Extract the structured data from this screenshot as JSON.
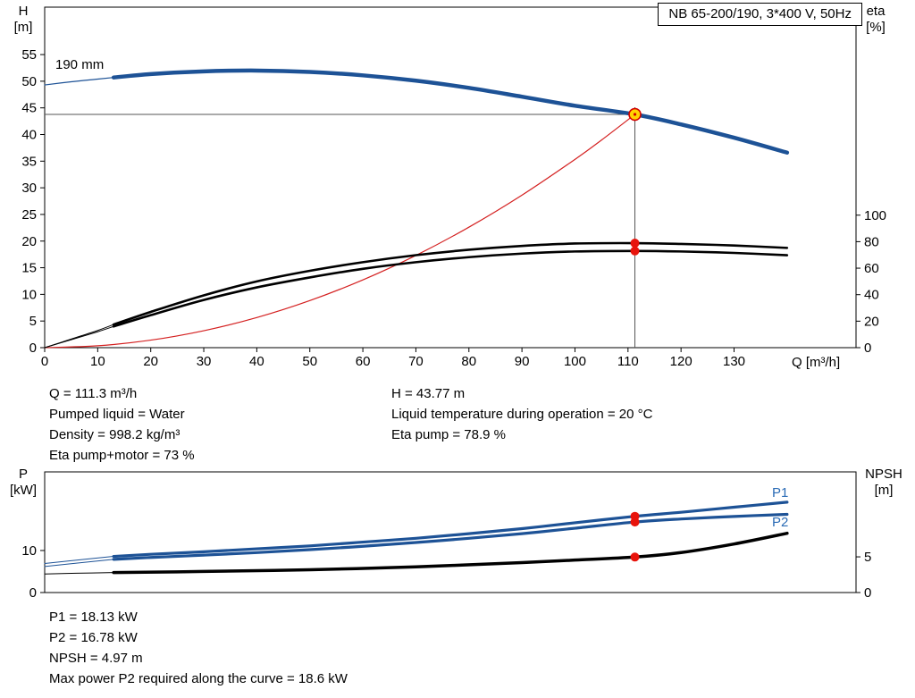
{
  "title_box": "NB 65-200/190, 3*400 V, 50Hz",
  "colors": {
    "curve_blue": "#1d5296",
    "label_blue": "#2a6bb5",
    "black": "#000000",
    "red": "#d42020",
    "dot_red": "#e8140c",
    "duty_fill": "#ffd400",
    "duty_ring": "#d40000",
    "crosshair": "#555555",
    "frame": "#000000"
  },
  "chart_data": [
    {
      "id": "head-chart",
      "type": "line",
      "x": {
        "label": "Q [m³/h]",
        "min": 0,
        "max": 153,
        "ticks": [
          0,
          10,
          20,
          30,
          40,
          50,
          60,
          70,
          80,
          90,
          100,
          110,
          120,
          130
        ]
      },
      "y_left": {
        "label": [
          "H",
          "[m]"
        ],
        "min": 0,
        "max": 63.9,
        "ticks": [
          0,
          5,
          10,
          15,
          20,
          25,
          30,
          35,
          40,
          45,
          50,
          55
        ]
      },
      "y_right": {
        "label": [
          "eta",
          "[%]"
        ],
        "min": 0,
        "max": 257,
        "ticks": [
          0,
          20,
          40,
          60,
          80,
          100
        ]
      },
      "curve_label": {
        "text": "190 mm"
      },
      "duty_point": {
        "q": 111.3,
        "h": 43.77
      },
      "dots": [
        {
          "axis": "right",
          "q": 111.3,
          "v": 78.9
        },
        {
          "axis": "right",
          "q": 111.3,
          "v": 73.0
        }
      ],
      "series": [
        {
          "name": "system-curve",
          "axis": "left",
          "color": "red",
          "width": 1.2,
          "points": [
            [
              0,
              0
            ],
            [
              10,
              0.35
            ],
            [
              20,
              1.41
            ],
            [
              30,
              3.18
            ],
            [
              40,
              5.65
            ],
            [
              50,
              8.83
            ],
            [
              60,
              12.72
            ],
            [
              70,
              17.31
            ],
            [
              80,
              22.61
            ],
            [
              90,
              28.62
            ],
            [
              100,
              35.33
            ],
            [
              105,
              38.95
            ],
            [
              111.3,
              43.77
            ]
          ]
        },
        {
          "name": "eta-pump-lead",
          "axis": "right",
          "color": "black",
          "width": 1,
          "points": [
            [
              0,
              0
            ],
            [
              5,
              6.5
            ],
            [
              10,
              13
            ],
            [
              13,
              17.5
            ]
          ]
        },
        {
          "name": "eta-pump",
          "axis": "right",
          "color": "black",
          "width": 2.6,
          "points": [
            [
              13,
              17.5
            ],
            [
              20,
              27
            ],
            [
              30,
              39.5
            ],
            [
              40,
              50
            ],
            [
              50,
              58
            ],
            [
              60,
              64.5
            ],
            [
              70,
              69.8
            ],
            [
              80,
              73.9
            ],
            [
              90,
              76.8
            ],
            [
              100,
              78.6
            ],
            [
              111.3,
              78.9
            ],
            [
              120,
              78.3
            ],
            [
              130,
              77.1
            ],
            [
              140,
              75.3
            ]
          ]
        },
        {
          "name": "eta-pump-motor-lead",
          "axis": "right",
          "color": "black",
          "width": 1,
          "points": [
            [
              0,
              0
            ],
            [
              5,
              6
            ],
            [
              10,
              12
            ],
            [
              13,
              16
            ]
          ]
        },
        {
          "name": "eta-pump-motor",
          "axis": "right",
          "color": "black",
          "width": 2.6,
          "points": [
            [
              13,
              16
            ],
            [
              20,
              24.5
            ],
            [
              30,
              36
            ],
            [
              40,
              45.5
            ],
            [
              50,
              53
            ],
            [
              60,
              59.5
            ],
            [
              70,
              64.5
            ],
            [
              80,
              68.3
            ],
            [
              90,
              71
            ],
            [
              100,
              72.6
            ],
            [
              111.3,
              73
            ],
            [
              120,
              72.6
            ],
            [
              130,
              71.5
            ],
            [
              140,
              69.8
            ]
          ]
        },
        {
          "name": "pump-curve-lead",
          "axis": "left",
          "color": "curve_blue",
          "width": 1.2,
          "points": [
            [
              0,
              49.3
            ],
            [
              5,
              49.9
            ],
            [
              10,
              50.4
            ],
            [
              13,
              50.7
            ]
          ]
        },
        {
          "name": "pump-curve-190mm",
          "axis": "left",
          "color": "curve_blue",
          "width": 4.5,
          "points": [
            [
              13,
              50.7
            ],
            [
              20,
              51.35
            ],
            [
              30,
              51.85
            ],
            [
              40,
              52
            ],
            [
              50,
              51.75
            ],
            [
              60,
              51.1
            ],
            [
              70,
              50.1
            ],
            [
              80,
              48.75
            ],
            [
              90,
              47.1
            ],
            [
              100,
              45.4
            ],
            [
              111.3,
              43.77
            ],
            [
              120,
              41.9
            ],
            [
              130,
              39.4
            ],
            [
              140,
              36.6
            ]
          ]
        }
      ]
    },
    {
      "id": "power-chart",
      "type": "line",
      "x": {
        "label": "",
        "min": 0,
        "max": 153,
        "ticks": []
      },
      "y_left": {
        "label": [
          "P",
          "[kW]"
        ],
        "min": 0,
        "max": 28.7,
        "ticks": [
          0,
          10
        ]
      },
      "y_right": {
        "label": [
          "NPSH",
          "[m]"
        ],
        "min": 0,
        "max": 16.9,
        "ticks": [
          0,
          5
        ]
      },
      "series_labels": [
        "P1",
        "P2"
      ],
      "dots": [
        {
          "axis": "left",
          "q": 111.3,
          "v": 18.13
        },
        {
          "axis": "left",
          "q": 111.3,
          "v": 16.78
        },
        {
          "axis": "right",
          "q": 111.3,
          "v": 4.97
        }
      ],
      "series": [
        {
          "name": "npsh-lead",
          "axis": "right",
          "color": "black",
          "width": 1,
          "points": [
            [
              0,
              2.6
            ],
            [
              6,
              2.7
            ],
            [
              13,
              2.8
            ]
          ]
        },
        {
          "name": "npsh",
          "axis": "right",
          "color": "black",
          "width": 3.5,
          "points": [
            [
              13,
              2.8
            ],
            [
              30,
              2.95
            ],
            [
              50,
              3.2
            ],
            [
              70,
              3.6
            ],
            [
              90,
              4.2
            ],
            [
              100,
              4.55
            ],
            [
              111.3,
              4.97
            ],
            [
              120,
              5.6
            ],
            [
              130,
              6.8
            ],
            [
              140,
              8.3
            ]
          ]
        },
        {
          "name": "p2-lead",
          "axis": "left",
          "color": "curve_blue",
          "width": 1,
          "points": [
            [
              0,
              6.2
            ],
            [
              6,
              7
            ],
            [
              13,
              7.9
            ]
          ]
        },
        {
          "name": "p2",
          "axis": "left",
          "color": "curve_blue",
          "width": 3.2,
          "points": [
            [
              13,
              7.9
            ],
            [
              20,
              8.35
            ],
            [
              30,
              8.9
            ],
            [
              40,
              9.5
            ],
            [
              50,
              10.2
            ],
            [
              60,
              11
            ],
            [
              70,
              11.9
            ],
            [
              80,
              12.9
            ],
            [
              90,
              14
            ],
            [
              100,
              15.3
            ],
            [
              111.3,
              16.78
            ],
            [
              120,
              17.5
            ],
            [
              130,
              18.1
            ],
            [
              140,
              18.6
            ]
          ]
        },
        {
          "name": "p1-lead",
          "axis": "left",
          "color": "curve_blue",
          "width": 1,
          "points": [
            [
              0,
              6.9
            ],
            [
              6,
              7.7
            ],
            [
              13,
              8.6
            ]
          ]
        },
        {
          "name": "p1",
          "axis": "left",
          "color": "curve_blue",
          "width": 3.2,
          "points": [
            [
              13,
              8.6
            ],
            [
              20,
              9.1
            ],
            [
              30,
              9.7
            ],
            [
              40,
              10.4
            ],
            [
              50,
              11.1
            ],
            [
              60,
              12
            ],
            [
              70,
              12.9
            ],
            [
              80,
              14
            ],
            [
              90,
              15.2
            ],
            [
              100,
              16.6
            ],
            [
              111.3,
              18.13
            ],
            [
              120,
              19.1
            ],
            [
              130,
              20.3
            ],
            [
              140,
              21.5
            ]
          ]
        }
      ]
    }
  ],
  "operating_text": {
    "left": [
      "Q = 111.3 m³/h",
      "Pumped liquid = Water",
      "Density = 998.2 kg/m³",
      "Eta pump+motor = 73 %"
    ],
    "right": [
      "H = 43.77 m",
      "Liquid temperature during operation = 20 °C",
      "Eta pump = 78.9 %"
    ]
  },
  "power_text": [
    "P1 = 18.13 kW",
    "P2 = 16.78 kW",
    "NPSH = 4.97 m",
    "Max power P2 required along the curve = 18.6 kW"
  ]
}
